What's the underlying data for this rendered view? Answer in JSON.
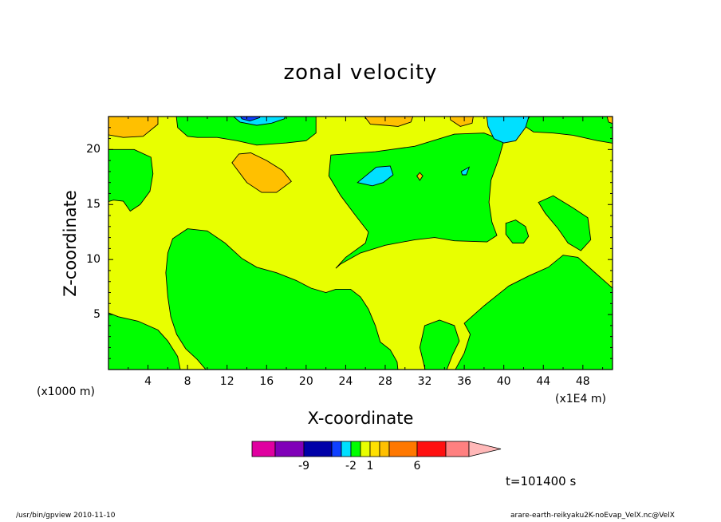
{
  "chart_data": {
    "type": "heatmap",
    "title": "zonal velocity",
    "xlabel": "X-coordinate",
    "ylabel": "Z-coordinate",
    "x_unit_label": "(x1000 m)",
    "x_unit_label2": "(x1E4 m)",
    "xlim": [
      0,
      51
    ],
    "ylim": [
      0,
      23
    ],
    "x_ticks": [
      "4",
      "8",
      "12",
      "16",
      "20",
      "24",
      "28",
      "32",
      "36",
      "40",
      "44",
      "48"
    ],
    "y_ticks": [
      "5",
      "10",
      "15",
      "20"
    ],
    "time_label": "t=101400 s",
    "colorbar": {
      "labels": [
        "-9",
        "-2",
        "1",
        "6"
      ],
      "colors": [
        "#e000a0",
        "#8000b8",
        "#0000a8",
        "#1040ff",
        "#00e0ff",
        "#00ff00",
        "#e8ff00",
        "#ffe000",
        "#ffc000",
        "#ff7800",
        "#ff1010",
        "#ff8080",
        "#ffb8b8"
      ]
    },
    "fields": {
      "background_level": "1 to 2 (yellow)",
      "regions": [
        {
          "level": "0 to 1",
          "color": "#00ff00",
          "description": "upper band, x 7-21, z 21-23"
        },
        {
          "level": "-1 to 0",
          "color": "#00e0ff",
          "description": "cores near x 14 and x 40, z 22-23"
        },
        {
          "level": "-2 to -1",
          "color": "#1040ff",
          "description": "core near x 14, z 22.5-23"
        },
        {
          "level": "2 to 3",
          "color": "#ffc000",
          "description": "patches near x 17 z 18, x 2 z 22, x 28 z 22"
        },
        {
          "level": "0 to 1",
          "color": "#00ff00",
          "description": "large lower regions x 6-30, z 0-13 and right side x 36-51"
        }
      ]
    }
  },
  "footer": {
    "left": "/usr/bin/gpview  2010-11-10",
    "right": "arare-earth-reikyaku2K-noEvap_VelX.nc@VelX"
  }
}
